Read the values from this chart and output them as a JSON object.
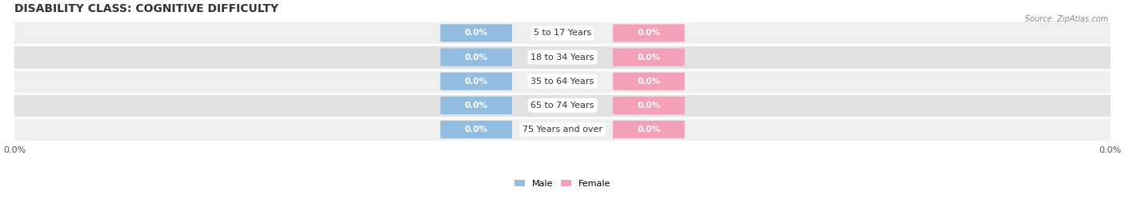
{
  "title": "DISABILITY CLASS: COGNITIVE DIFFICULTY",
  "source": "Source: ZipAtlas.com",
  "categories": [
    "5 to 17 Years",
    "18 to 34 Years",
    "35 to 64 Years",
    "65 to 74 Years",
    "75 Years and over"
  ],
  "male_values": [
    0.0,
    0.0,
    0.0,
    0.0,
    0.0
  ],
  "female_values": [
    0.0,
    0.0,
    0.0,
    0.0,
    0.0
  ],
  "male_color": "#92bce0",
  "female_color": "#f4a0b8",
  "row_bg_color_odd": "#efefef",
  "row_bg_color_even": "#e2e2e2",
  "title_fontsize": 10,
  "label_fontsize": 7.5,
  "tick_fontsize": 8,
  "figsize": [
    14.06,
    2.69
  ],
  "dpi": 100
}
